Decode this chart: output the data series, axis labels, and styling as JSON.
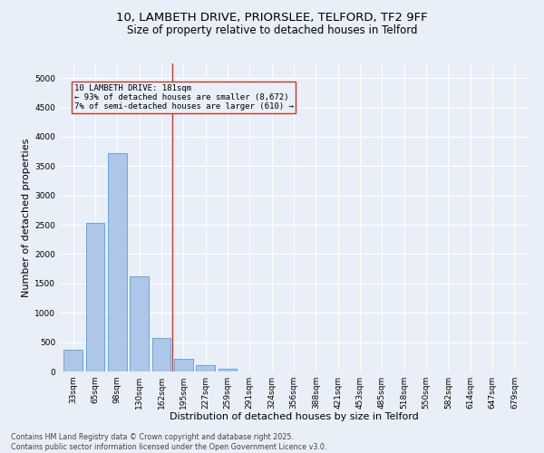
{
  "title_line1": "10, LAMBETH DRIVE, PRIORSLEE, TELFORD, TF2 9FF",
  "title_line2": "Size of property relative to detached houses in Telford",
  "xlabel": "Distribution of detached houses by size in Telford",
  "ylabel": "Number of detached properties",
  "categories": [
    "33sqm",
    "65sqm",
    "98sqm",
    "130sqm",
    "162sqm",
    "195sqm",
    "227sqm",
    "259sqm",
    "291sqm",
    "324sqm",
    "356sqm",
    "388sqm",
    "421sqm",
    "453sqm",
    "485sqm",
    "518sqm",
    "550sqm",
    "582sqm",
    "614sqm",
    "647sqm",
    "679sqm"
  ],
  "values": [
    370,
    2530,
    3720,
    1620,
    570,
    210,
    110,
    40,
    5,
    0,
    0,
    0,
    0,
    0,
    0,
    0,
    0,
    0,
    0,
    0,
    0
  ],
  "bar_color": "#aec6e8",
  "bar_edge_color": "#5b9bd5",
  "vline_x": 4.5,
  "vline_color": "#c0392b",
  "annotation_box_text": "10 LAMBETH DRIVE: 181sqm\n← 93% of detached houses are smaller (8,672)\n7% of semi-detached houses are larger (610) →",
  "box_edge_color": "#c0392b",
  "ylim": [
    0,
    5250
  ],
  "yticks": [
    0,
    500,
    1000,
    1500,
    2000,
    2500,
    3000,
    3500,
    4000,
    4500,
    5000
  ],
  "background_color": "#e8eff8",
  "grid_color": "#ffffff",
  "footnote": "Contains HM Land Registry data © Crown copyright and database right 2025.\nContains public sector information licensed under the Open Government Licence v3.0.",
  "title_fontsize": 9.5,
  "subtitle_fontsize": 8.5,
  "xlabel_fontsize": 8,
  "ylabel_fontsize": 8,
  "tick_fontsize": 6.5,
  "footnote_fontsize": 5.8
}
